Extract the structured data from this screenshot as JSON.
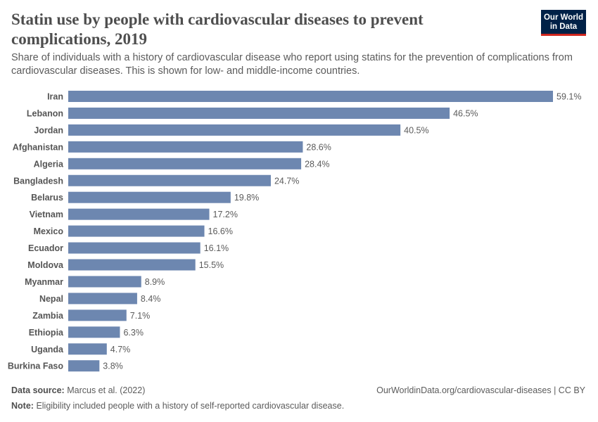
{
  "header": {
    "title": "Statin use by people with cardiovascular diseases to prevent complications, 2019",
    "subtitle": "Share of individuals with a history of cardiovascular disease who report using statins for the prevention of complications from cardiovascular diseases. This is shown for low- and middle-income countries.",
    "logo_text": "Our World in Data"
  },
  "chart_data": {
    "type": "bar",
    "orientation": "horizontal",
    "categories": [
      "Iran",
      "Lebanon",
      "Jordan",
      "Afghanistan",
      "Algeria",
      "Bangladesh",
      "Belarus",
      "Vietnam",
      "Mexico",
      "Ecuador",
      "Moldova",
      "Myanmar",
      "Nepal",
      "Zambia",
      "Ethiopia",
      "Uganda",
      "Burkina Faso"
    ],
    "values": [
      59.1,
      46.5,
      40.5,
      28.6,
      28.4,
      24.7,
      19.8,
      17.2,
      16.6,
      16.1,
      15.5,
      8.9,
      8.4,
      7.1,
      6.3,
      4.7,
      3.8
    ],
    "value_suffix": "%",
    "bar_color": "#6d87b0",
    "xlim": [
      0,
      59.1
    ],
    "grid": false
  },
  "footer": {
    "source_label": "Data source:",
    "source": "Marcus et al. (2022)",
    "url": "OurWorldinData.org/cardiovascular-diseases | CC BY",
    "note_label": "Note:",
    "note": "Eligibility included people with a history of self-reported cardiovascular disease."
  }
}
